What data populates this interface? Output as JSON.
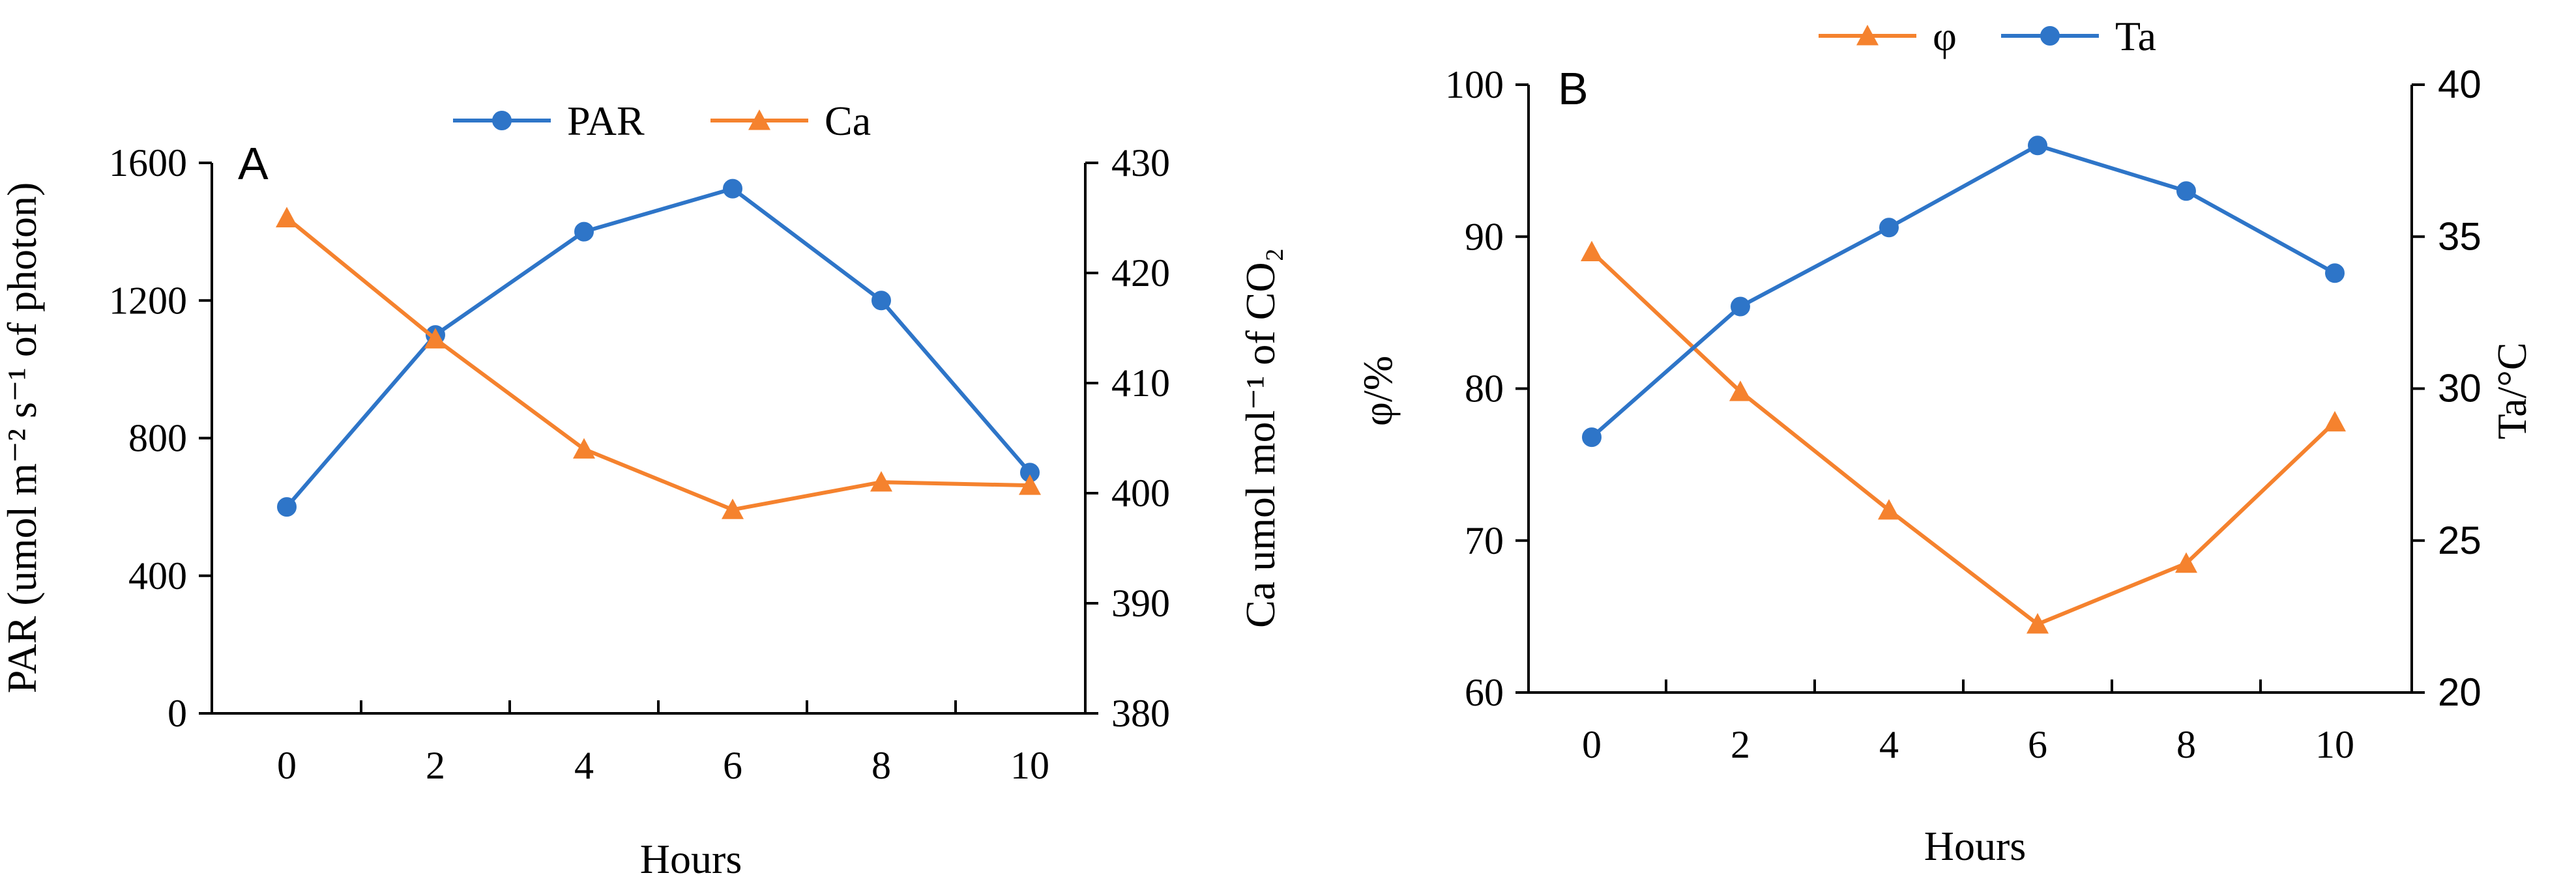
{
  "chart_data": [
    {
      "panel": "A",
      "type": "line",
      "x": [
        0,
        2,
        4,
        6,
        8,
        10
      ],
      "xlabel": "Hours",
      "x_ticks": [
        "0",
        "2",
        "4",
        "6",
        "8",
        "10"
      ],
      "left_axis": {
        "label": "PAR (umol m⁻² s⁻¹ of photon)",
        "ylim": [
          0,
          1600
        ],
        "ticks": [
          "0",
          "400",
          "800",
          "1200",
          "1600"
        ]
      },
      "right_axis": {
        "label": "Ca umol mol⁻¹ of CO₂",
        "ylim": [
          380,
          430
        ],
        "ticks": [
          "380",
          "390",
          "400",
          "410",
          "420",
          "430"
        ]
      },
      "series": [
        {
          "name": "PAR",
          "axis": "left",
          "marker": "circle",
          "color": "#2E75C8",
          "values": [
            600,
            1100,
            1400,
            1525,
            1200,
            700
          ]
        },
        {
          "name": "Ca",
          "axis": "right",
          "marker": "triangle",
          "color": "#F5822E",
          "values": [
            425,
            414,
            404,
            398.5,
            401,
            400.7
          ]
        }
      ],
      "legend": "top-center",
      "grid": false
    },
    {
      "panel": "B",
      "type": "line",
      "x": [
        0,
        2,
        4,
        6,
        8,
        10
      ],
      "xlabel": "Hours",
      "x_ticks": [
        "0",
        "2",
        "4",
        "6",
        "8",
        "10"
      ],
      "left_axis": {
        "label": "φ/%",
        "ylim": [
          60,
          100
        ],
        "ticks": [
          "60",
          "70",
          "80",
          "90",
          "100"
        ]
      },
      "right_axis": {
        "label": "Ta/°C",
        "ylim": [
          20,
          40
        ],
        "ticks": [
          "20",
          "25",
          "30",
          "35",
          "40"
        ]
      },
      "series": [
        {
          "name": "φ",
          "axis": "left",
          "marker": "triangle",
          "color": "#F5822E",
          "values": [
            89,
            79.8,
            72,
            64.5,
            68.5,
            77.8
          ]
        },
        {
          "name": "Ta",
          "axis": "right",
          "marker": "circle",
          "color": "#2E75C8",
          "values": [
            28.4,
            32.7,
            35.3,
            38,
            36.5,
            33.8
          ]
        }
      ],
      "legend": "top-center",
      "grid": false
    }
  ]
}
